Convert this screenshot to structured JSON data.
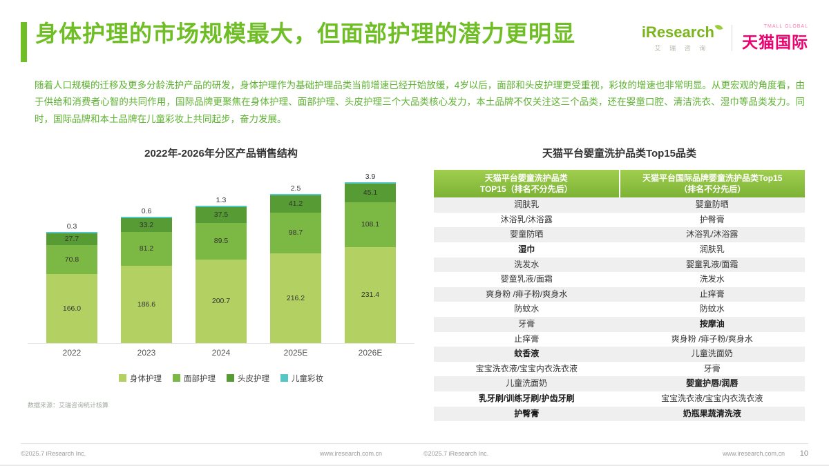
{
  "slide": {
    "title": "身体护理的市场规模最大，但面部护理的潜力更明显",
    "body_text": "随着人口规模的迁移及更多分龄洗护产品的研发，身体护理作为基础护理品类当前增速已经开始放缓，4岁以后，面部和头皮护理更受重视，彩妆的增速也非常明显。从更宏观的角度看，由于供给和消费者心智的共同作用，国际品牌更聚焦在身体护理、面部护理、头皮护理三个大品类核心发力，本土品牌不仅关注这三个品类，还在婴童口腔、清洁洗衣、湿巾等品类发力。同时，国际品牌和本土品牌在儿童彩妆上共同起步，奋力发展。",
    "source_note": "数据来源：艾瑞咨询统计核算"
  },
  "logos": {
    "iresearch_name": "iResearch",
    "iresearch_sub": "艾 瑞 咨 询",
    "tmall_top": "TMALL GLOBAL",
    "tmall_name": "天猫国际"
  },
  "chart_data": {
    "type": "bar",
    "stacked": true,
    "title": "2022年-2026年分区产品销售结构",
    "categories": [
      "2022",
      "2023",
      "2024",
      "2025E",
      "2026E"
    ],
    "series": [
      {
        "name": "身体护理",
        "color": "#b2d162",
        "values": [
          166.0,
          186.6,
          200.7,
          216.2,
          231.4
        ]
      },
      {
        "name": "面部护理",
        "color": "#7cb944",
        "values": [
          70.8,
          81.2,
          89.5,
          98.7,
          108.1
        ]
      },
      {
        "name": "头皮护理",
        "color": "#569b33",
        "values": [
          27.7,
          33.2,
          37.5,
          41.2,
          45.1
        ]
      },
      {
        "name": "儿童彩妆",
        "color": "#52c7c4",
        "values": [
          0.3,
          0.6,
          1.3,
          2.5,
          3.9
        ]
      }
    ],
    "legend_position": "bottom",
    "value_labels": true
  },
  "table": {
    "title": "天猫平台婴童洗护品类Top15品类",
    "headers": [
      {
        "line1": "天猫平台婴童洗护品类",
        "line2": "TOP15（排名不分先后）"
      },
      {
        "line1": "天猫平台国际品牌婴童洗护品类Top15",
        "line2": "（排名不分先后）"
      }
    ],
    "rows": [
      {
        "left": "润肤乳",
        "left_bold": false,
        "right": "婴童防晒",
        "right_bold": false
      },
      {
        "left": "沐浴乳/沐浴露",
        "left_bold": false,
        "right": "护臀膏",
        "right_bold": false
      },
      {
        "left": "婴童防晒",
        "left_bold": false,
        "right": "沐浴乳/沐浴露",
        "right_bold": false
      },
      {
        "left": "湿巾",
        "left_bold": true,
        "right": "润肤乳",
        "right_bold": false
      },
      {
        "left": "洗发水",
        "left_bold": false,
        "right": "婴童乳液/面霜",
        "right_bold": false
      },
      {
        "left": "婴童乳液/面霜",
        "left_bold": false,
        "right": "洗发水",
        "right_bold": false
      },
      {
        "left": "爽身粉 /痱子粉/爽身水",
        "left_bold": false,
        "right": "止痒膏",
        "right_bold": false
      },
      {
        "left": "防蚊水",
        "left_bold": false,
        "right": "防蚊水",
        "right_bold": false
      },
      {
        "left": "牙膏",
        "left_bold": false,
        "right": "按摩油",
        "right_bold": true
      },
      {
        "left": "止痒膏",
        "left_bold": false,
        "right": "爽身粉 /痱子粉/爽身水",
        "right_bold": false
      },
      {
        "left": "蚊香液",
        "left_bold": true,
        "right": "儿童洗面奶",
        "right_bold": false
      },
      {
        "left": "宝宝洗衣液/宝宝内衣洗衣液",
        "left_bold": false,
        "right": "牙膏",
        "right_bold": false
      },
      {
        "left": "儿童洗面奶",
        "left_bold": false,
        "right": "婴童护唇/润唇",
        "right_bold": true
      },
      {
        "left": "乳牙刷/训练牙刷/护齿牙刷",
        "left_bold": true,
        "right": "宝宝洗衣液/宝宝内衣洗衣液",
        "right_bold": false
      },
      {
        "left": "护臀膏",
        "left_bold": true,
        "right": "奶瓶果蔬清洗液",
        "right_bold": true
      }
    ]
  },
  "footer": {
    "copyright": "©2025.7 iResearch Inc.",
    "url": "www.iresearch.com.cn",
    "page": "10"
  }
}
